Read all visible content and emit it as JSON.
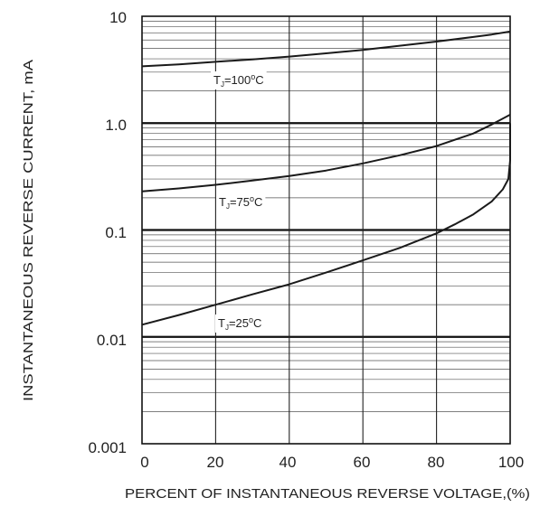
{
  "chart_data": {
    "type": "line",
    "xlabel": "PERCENT OF INSTANTANEOUS REVERSE VOLTAGE,(%)",
    "ylabel": "INSTANTANEOUS REVERSE CURRENT, mA",
    "xlim": [
      0,
      100
    ],
    "ylim": [
      0.001,
      10
    ],
    "yscale": "log",
    "grid": true,
    "x_ticks": [
      "0",
      "20",
      "40",
      "60",
      "80",
      "100"
    ],
    "y_ticks": [
      "10",
      "1.0",
      "0.1",
      "0.01",
      "0.001"
    ],
    "series": [
      {
        "label_parts": [
          "T",
          "J",
          "=100",
          "o",
          "C"
        ],
        "x": [
          0,
          10,
          20,
          30,
          40,
          50,
          60,
          70,
          80,
          90,
          95,
          100
        ],
        "y": [
          3.4,
          3.55,
          3.75,
          3.95,
          4.2,
          4.5,
          4.85,
          5.3,
          5.8,
          6.4,
          6.75,
          7.2
        ]
      },
      {
        "label_parts": [
          "T",
          "J",
          "=75",
          "o",
          "C"
        ],
        "x": [
          0,
          10,
          20,
          30,
          40,
          50,
          60,
          70,
          80,
          90,
          95,
          100
        ],
        "y": [
          0.23,
          0.245,
          0.265,
          0.29,
          0.32,
          0.36,
          0.42,
          0.5,
          0.61,
          0.8,
          0.97,
          1.2
        ]
      },
      {
        "label_parts": [
          "T",
          "J",
          "=25",
          "o",
          "C"
        ],
        "x": [
          0,
          10,
          20,
          30,
          40,
          50,
          60,
          70,
          80,
          85,
          90,
          95,
          98,
          99.5,
          100,
          100
        ],
        "y": [
          0.013,
          0.016,
          0.02,
          0.025,
          0.031,
          0.04,
          0.052,
          0.068,
          0.093,
          0.113,
          0.14,
          0.185,
          0.24,
          0.3,
          0.45,
          1.0
        ]
      }
    ]
  }
}
